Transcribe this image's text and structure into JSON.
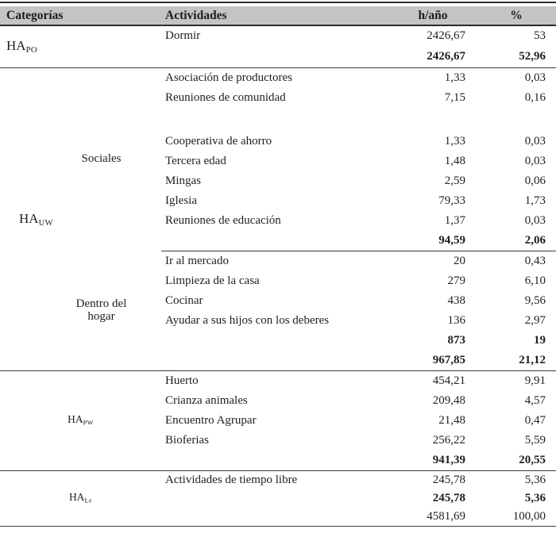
{
  "table": {
    "columns": {
      "categorias": "Categorías",
      "actividades": "Actividades",
      "h_ano": "h/año",
      "pct": "%"
    },
    "sections": [
      {
        "id": "HAPO",
        "category": {
          "base": "HA",
          "sub": "PO",
          "size": "large",
          "align": "left",
          "indent": 8
        },
        "rows": [
          {
            "activity": "Dormir",
            "h": "2426,67",
            "pct": "53"
          },
          {
            "activity": "",
            "h": "2426,67",
            "pct": "52,96",
            "bold": true,
            "line": true
          }
        ]
      },
      {
        "id": "HAUW",
        "category": {
          "base": "HA",
          "sub": "UW",
          "size": "large",
          "align": "left",
          "indent": 24
        },
        "subgroups": [
          {
            "label": "Sociales",
            "span": 9,
            "end_line": false
          },
          {
            "label": "Dentro del\nhogar",
            "span": 6,
            "end_line": true
          }
        ],
        "rows": [
          {
            "activity": "Asociación de productores",
            "h": "1,33",
            "pct": "0,03"
          },
          {
            "activity": "Reuniones de comunidad",
            "h": "7,15",
            "pct": "0,16"
          },
          {
            "spacer": true
          },
          {
            "activity": "Cooperativa de ahorro",
            "h": "1,33",
            "pct": "0,03"
          },
          {
            "activity": "Tercera edad",
            "h": "1,48",
            "pct": "0,03"
          },
          {
            "activity": "Mingas",
            "h": "2,59",
            "pct": "0,06"
          },
          {
            "activity": "Iglesia",
            "h": "79,33",
            "pct": "1,73"
          },
          {
            "activity": "Reuniones de educación",
            "h": "1,37",
            "pct": "0,03"
          },
          {
            "activity": "",
            "h": "94,59",
            "pct": "2,06",
            "bold": true,
            "line": true
          },
          {
            "activity": "Ir al mercado",
            "h": "20",
            "pct": "0,43"
          },
          {
            "activity": "Limpieza de la casa",
            "h": "279",
            "pct": "6,10"
          },
          {
            "activity": "Cocinar",
            "h": "438",
            "pct": "9,56"
          },
          {
            "activity": "Ayudar a sus hijos con los deberes",
            "h": "136",
            "pct": "2,97"
          },
          {
            "activity": "",
            "h": "873",
            "pct": "19",
            "bold": true
          },
          {
            "activity": "",
            "h": "967,85",
            "pct": "21,12",
            "bold": true,
            "line": true
          }
        ]
      },
      {
        "id": "HAPW",
        "category": {
          "base": "HA",
          "sub": "PW",
          "size": "small",
          "align": "center",
          "indent": 0
        },
        "rows": [
          {
            "activity": "Huerto",
            "h": "454,21",
            "pct": "9,91"
          },
          {
            "activity": "Crianza animales",
            "h": "209,48",
            "pct": "4,57"
          },
          {
            "activity": "Encuentro Agrupar",
            "h": "21,48",
            "pct": "0,47"
          },
          {
            "activity": "Bioferias",
            "h": "256,22",
            "pct": "5,59"
          },
          {
            "activity": "",
            "h": "941,39",
            "pct": "20,55",
            "bold": true,
            "line": true
          }
        ]
      },
      {
        "id": "HALe",
        "category": {
          "base": "HA",
          "sub": "Le",
          "size": "small",
          "align": "center",
          "indent": 0
        },
        "rows": [
          {
            "activity": "Actividades de tiempo libre",
            "h": "245,78",
            "pct": "5,36"
          },
          {
            "activity": "",
            "h": "245,78",
            "pct": "5,36",
            "bold": true
          },
          {
            "activity": "",
            "h": "4581,69",
            "pct": "100,00",
            "line": true
          }
        ]
      }
    ]
  }
}
